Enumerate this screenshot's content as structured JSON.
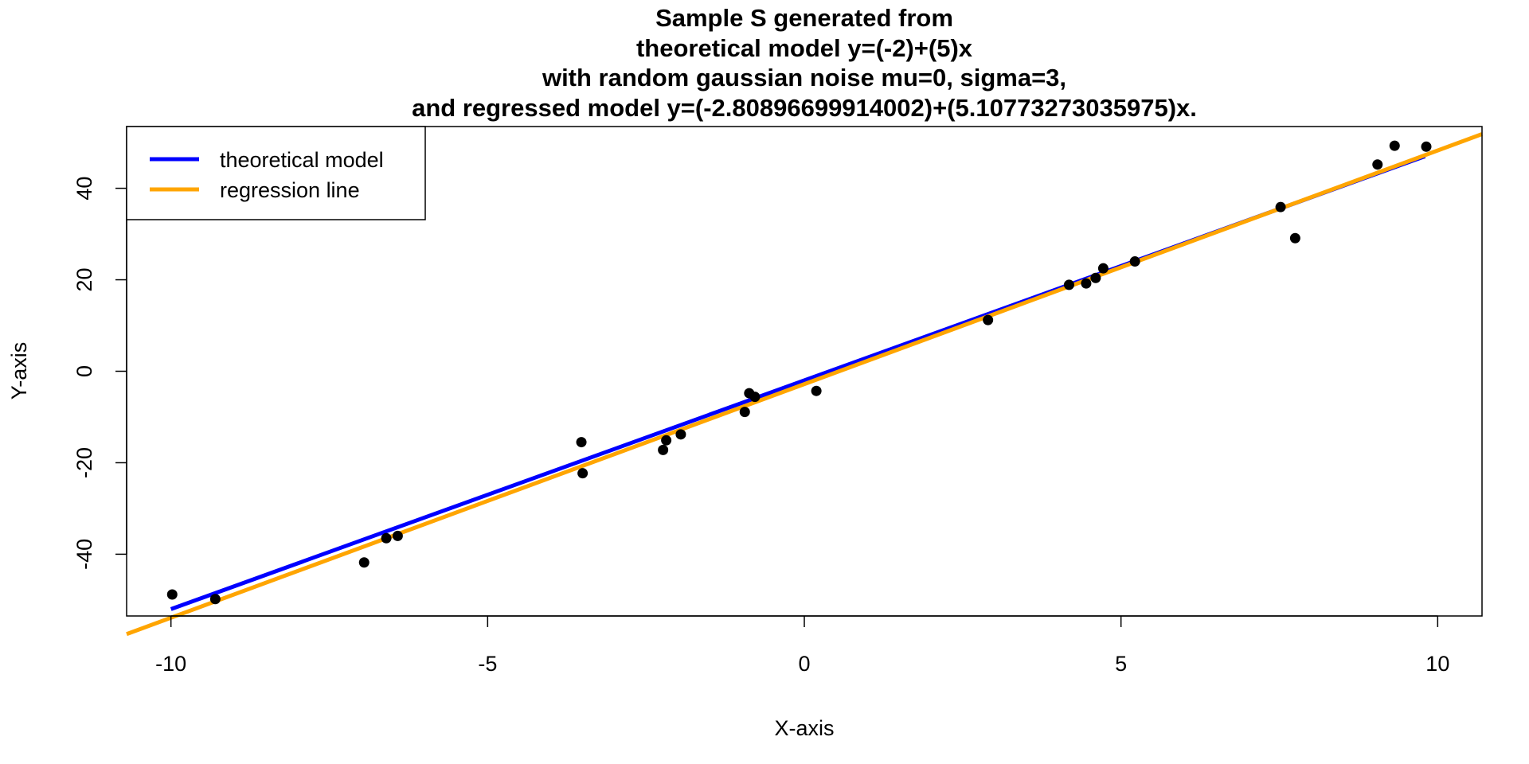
{
  "chart_data": {
    "type": "scatter",
    "title_lines": [
      "Sample S generated from",
      "theoretical model y=(-2)+(5)x",
      "with random gaussian noise mu=0, sigma=3,",
      "and regressed model y=(-2.80896699914002)+(5.10773273035975)x."
    ],
    "xlabel": "X-axis",
    "ylabel": "Y-axis",
    "xlim": [
      -10.7,
      10.7
    ],
    "ylim": [
      -53.5,
      53.5
    ],
    "x_ticks": [
      -10,
      -5,
      0,
      5,
      10
    ],
    "x_tick_labels": [
      "-10",
      "-5",
      "0",
      "5",
      "10"
    ],
    "y_ticks": [
      -40,
      -20,
      0,
      20,
      40
    ],
    "y_tick_labels": [
      "-40",
      "-20",
      "0",
      "20",
      "40"
    ],
    "grid": false,
    "legend_position": "top-left",
    "legend": [
      {
        "label": "theoretical model",
        "color": "#0000ff"
      },
      {
        "label": "regression line",
        "color": "#ffa500"
      }
    ],
    "lines": [
      {
        "name": "theoretical model",
        "intercept": -2,
        "slope": 5,
        "x_range": [
          -10,
          9.8
        ],
        "color": "#0000ff"
      },
      {
        "name": "regression line",
        "intercept": -2.80896699914002,
        "slope": 5.10773273035975,
        "x_range": [
          -10.7,
          10.7
        ],
        "color": "#ffa500"
      }
    ],
    "points_color": "#000000",
    "points": [
      {
        "x": -9.98,
        "y": -48.8
      },
      {
        "x": -9.3,
        "y": -49.8
      },
      {
        "x": -6.95,
        "y": -41.8
      },
      {
        "x": -6.6,
        "y": -36.5
      },
      {
        "x": -6.42,
        "y": -36.0
      },
      {
        "x": -3.52,
        "y": -15.5
      },
      {
        "x": -3.5,
        "y": -22.3
      },
      {
        "x": -2.23,
        "y": -17.2
      },
      {
        "x": -2.18,
        "y": -15.1
      },
      {
        "x": -1.95,
        "y": -13.8
      },
      {
        "x": -0.94,
        "y": -8.9
      },
      {
        "x": -0.87,
        "y": -4.8
      },
      {
        "x": -0.78,
        "y": -5.6
      },
      {
        "x": 0.19,
        "y": -4.3
      },
      {
        "x": 2.9,
        "y": 11.2
      },
      {
        "x": 4.18,
        "y": 18.9
      },
      {
        "x": 4.45,
        "y": 19.2
      },
      {
        "x": 4.6,
        "y": 20.4
      },
      {
        "x": 4.72,
        "y": 22.5
      },
      {
        "x": 5.22,
        "y": 24.0
      },
      {
        "x": 7.52,
        "y": 35.9
      },
      {
        "x": 7.75,
        "y": 29.1
      },
      {
        "x": 9.05,
        "y": 45.2
      },
      {
        "x": 9.32,
        "y": 49.3
      },
      {
        "x": 9.82,
        "y": 49.1
      }
    ]
  }
}
